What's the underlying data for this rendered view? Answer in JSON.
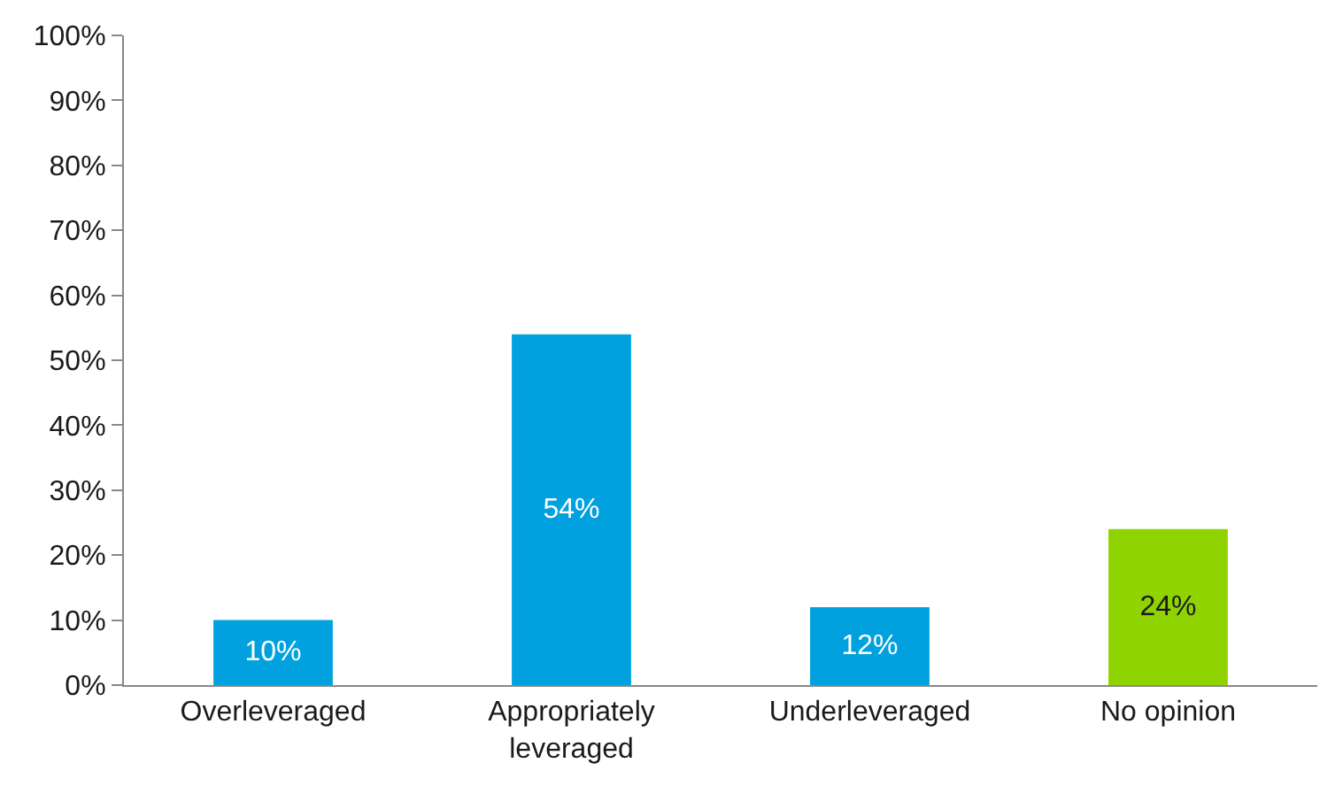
{
  "chart_data": {
    "type": "bar",
    "categories": [
      "Overleveraged",
      "Appropriately leveraged",
      "Underleveraged",
      "No opinion"
    ],
    "values": [
      10,
      54,
      12,
      24
    ],
    "colors": [
      "#00a1de",
      "#00a1de",
      "#00a1de",
      "#8fd400"
    ],
    "value_labels": [
      "10%",
      "54%",
      "12%",
      "24%"
    ],
    "ylim": [
      0,
      100
    ],
    "yticks": [
      {
        "value": 0,
        "label": "0%"
      },
      {
        "value": 10,
        "label": "10%"
      },
      {
        "value": 20,
        "label": "20%"
      },
      {
        "value": 30,
        "label": "30%"
      },
      {
        "value": 40,
        "label": "40%"
      },
      {
        "value": 50,
        "label": "50%"
      },
      {
        "value": 60,
        "label": "60%"
      },
      {
        "value": 70,
        "label": "70%"
      },
      {
        "value": 80,
        "label": "80%"
      },
      {
        "value": 90,
        "label": "90%"
      },
      {
        "value": 100,
        "label": "100%"
      }
    ]
  }
}
